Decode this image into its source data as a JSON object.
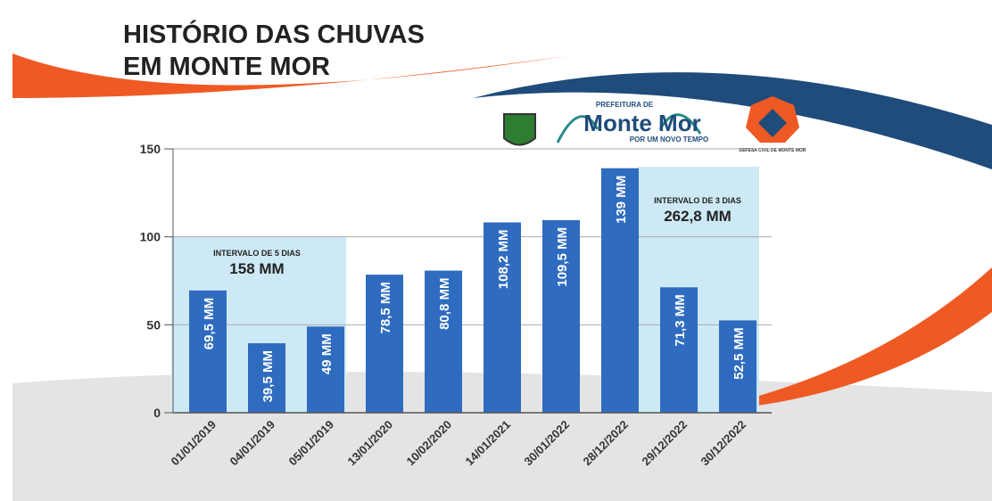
{
  "chart_data": {
    "type": "bar",
    "title_lines": [
      "HISTÓRIO DAS CHUVAS",
      "EM MONTE MOR"
    ],
    "categories": [
      "01/01/2019",
      "04/01/2019",
      "05/01/2019",
      "13/01/2020",
      "10/02/2020",
      "14/01/2021",
      "30/01/2022",
      "28/12/2022",
      "29/12/2022",
      "30/12/2022"
    ],
    "values": [
      69.5,
      39.5,
      49,
      78.5,
      80.8,
      108.2,
      109.5,
      139,
      71.3,
      52.5
    ],
    "value_labels": [
      "69,5 MM",
      "39,5 MM",
      "49 MM",
      "78,5 MM",
      "80,8 MM",
      "108,2 MM",
      "109,5 MM",
      "139 MM",
      "71,3 MM",
      "52,5 MM"
    ],
    "color": "#2f6cc0",
    "ylim": [
      0,
      150
    ],
    "yticks": [
      0,
      50,
      100,
      150
    ],
    "grid": true,
    "annotations": [
      {
        "label": "INTERVALO DE 5 DIAS",
        "total": "158 MM"
      },
      {
        "label": "INTERVALO DE 3 DIAS",
        "total": "262,8 MM"
      }
    ]
  },
  "logos": {
    "prefeitura": "PREFEITURA DE",
    "name": "Monte Mor",
    "slogan": "POR UM NOVO TEMPO",
    "defesa": "DEFESA CIVIL DE MONTE MOR"
  }
}
